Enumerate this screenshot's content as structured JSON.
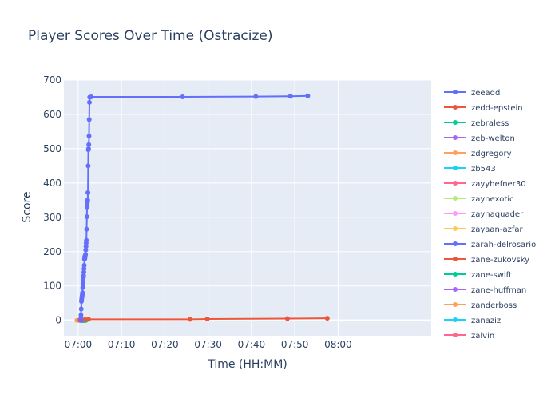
{
  "chart_data": {
    "type": "line",
    "title": "Player Scores Over Time (Ostracize)",
    "xlabel": "Time (HH:MM)",
    "ylabel": "Score",
    "x_tick_labels": [
      "07:00",
      "07:10",
      "07:20",
      "07:30",
      "07:40",
      "07:50",
      "08:00"
    ],
    "y_ticks": [
      0,
      100,
      200,
      300,
      400,
      500,
      600,
      700
    ],
    "xlim_minutes": [
      -3.3,
      81.5
    ],
    "ylim": [
      -45,
      700
    ],
    "grid": true,
    "legend_position": "right",
    "series": [
      {
        "name": "zeeadd",
        "color": "#636efa",
        "points": [
          [
            0.6,
            0
          ],
          [
            0.6,
            5
          ],
          [
            0.65,
            15
          ],
          [
            0.7,
            33
          ],
          [
            0.75,
            55
          ],
          [
            0.8,
            60
          ],
          [
            0.85,
            65
          ],
          [
            0.9,
            70
          ],
          [
            0.95,
            75
          ],
          [
            1.0,
            80
          ],
          [
            1.05,
            95
          ],
          [
            1.1,
            105
          ],
          [
            1.15,
            115
          ],
          [
            1.2,
            125
          ],
          [
            1.25,
            130
          ],
          [
            1.3,
            140
          ],
          [
            1.35,
            150
          ],
          [
            1.4,
            160
          ],
          [
            1.45,
            178
          ],
          [
            1.5,
            185
          ],
          [
            1.55,
            180
          ],
          [
            1.6,
            185
          ],
          [
            1.65,
            190
          ],
          [
            1.7,
            192
          ],
          [
            1.75,
            205
          ],
          [
            1.8,
            215
          ],
          [
            1.85,
            225
          ],
          [
            1.9,
            233
          ],
          [
            1.95,
            265
          ],
          [
            2.0,
            302
          ],
          [
            2.05,
            328
          ],
          [
            2.1,
            335
          ],
          [
            2.15,
            345
          ],
          [
            2.2,
            350
          ],
          [
            2.25,
            372
          ],
          [
            2.3,
            450
          ],
          [
            2.35,
            497
          ],
          [
            2.4,
            500
          ],
          [
            2.45,
            512
          ],
          [
            2.5,
            537
          ],
          [
            2.55,
            585
          ],
          [
            2.6,
            635
          ],
          [
            2.65,
            650
          ],
          [
            3.0,
            651
          ],
          [
            24.1,
            651
          ],
          [
            41.0,
            652
          ],
          [
            49.0,
            653
          ],
          [
            53.0,
            654
          ]
        ]
      },
      {
        "name": "zedd-epstein",
        "color": "#ef553b",
        "points": [
          [
            0.4,
            1
          ],
          [
            1.0,
            1
          ],
          [
            1.6,
            2
          ],
          [
            2.4,
            3
          ],
          [
            25.8,
            3
          ],
          [
            29.8,
            4
          ],
          [
            48.3,
            5
          ],
          [
            57.5,
            6
          ]
        ]
      },
      {
        "name": "zebraless",
        "color": "#00cc96",
        "points": [
          [
            1.1,
            0
          ],
          [
            1.3,
            0
          ],
          [
            1.5,
            0
          ],
          [
            1.7,
            0
          ]
        ]
      },
      {
        "name": "zeb-welton",
        "color": "#ab63fa",
        "points": [
          [
            0.9,
            0
          ],
          [
            1.2,
            0
          ]
        ]
      },
      {
        "name": "zdgregory",
        "color": "#ffa15a",
        "points": [
          [
            -0.3,
            0
          ],
          [
            0.1,
            0
          ]
        ]
      },
      {
        "name": "zb543",
        "color": "#19d3f3",
        "points": [
          [
            0.3,
            0
          ],
          [
            0.6,
            0
          ]
        ]
      },
      {
        "name": "zayyhefner30",
        "color": "#ff6692",
        "points": [
          [
            0.5,
            0
          ],
          [
            0.8,
            0
          ]
        ]
      },
      {
        "name": "zaynexotic",
        "color": "#b6e880",
        "points": [
          [
            0.2,
            0
          ],
          [
            0.4,
            0
          ]
        ]
      },
      {
        "name": "zaynaquader",
        "color": "#ff97ff",
        "points": [
          [
            0.7,
            0
          ]
        ]
      },
      {
        "name": "zayaan-azfar",
        "color": "#fecb52",
        "points": [
          [
            0.0,
            0
          ]
        ]
      },
      {
        "name": "zarah-delrosario",
        "color": "#636efa",
        "points": [
          [
            1.3,
            0
          ]
        ]
      },
      {
        "name": "zane-zukovsky",
        "color": "#ef553b",
        "points": [
          [
            1.4,
            0
          ]
        ]
      },
      {
        "name": "zane-swift",
        "color": "#00cc96",
        "points": [
          [
            1.5,
            0
          ],
          [
            1.8,
            0
          ]
        ]
      },
      {
        "name": "zane-huffman",
        "color": "#ab63fa",
        "points": [
          [
            1.0,
            0
          ]
        ]
      },
      {
        "name": "zanderboss",
        "color": "#ffa15a",
        "points": [
          [
            0.2,
            0
          ]
        ]
      },
      {
        "name": "zanaziz",
        "color": "#19d3f3",
        "points": [
          [
            0.9,
            0
          ]
        ]
      },
      {
        "name": "zalvin",
        "color": "#ff6692",
        "points": [
          [
            1.1,
            0
          ]
        ]
      }
    ]
  }
}
